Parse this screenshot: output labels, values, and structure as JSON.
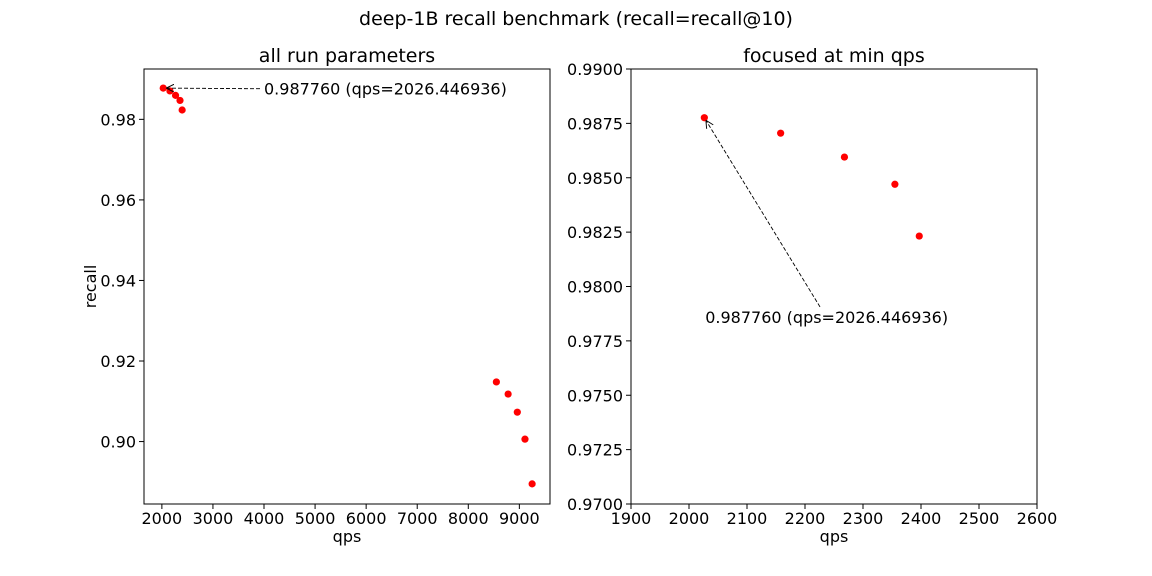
{
  "figure": {
    "title": "deep-1B recall benchmark (recall=recall@10)"
  },
  "chart_data": [
    {
      "type": "scatter",
      "title": "all run parameters",
      "xlabel": "qps",
      "ylabel": "recall",
      "xlim": [
        1650,
        9600
      ],
      "ylim": [
        0.8845,
        0.9925
      ],
      "xticks": [
        2000,
        3000,
        4000,
        5000,
        6000,
        7000,
        8000,
        9000
      ],
      "xtick_labels": [
        "2000",
        "3000",
        "4000",
        "5000",
        "6000",
        "7000",
        "8000",
        "9000"
      ],
      "yticks": [
        0.9,
        0.92,
        0.94,
        0.96,
        0.98
      ],
      "ytick_labels": [
        "0.90",
        "0.92",
        "0.94",
        "0.96",
        "0.98"
      ],
      "grid": false,
      "marker_color": "#ff0000",
      "points": [
        {
          "x": 2026.446936,
          "y": 0.98776
        },
        {
          "x": 2158,
          "y": 0.98705
        },
        {
          "x": 2268,
          "y": 0.98595
        },
        {
          "x": 2355,
          "y": 0.9847
        },
        {
          "x": 2397,
          "y": 0.98232
        },
        {
          "x": 8550,
          "y": 0.9148
        },
        {
          "x": 8780,
          "y": 0.9118
        },
        {
          "x": 8960,
          "y": 0.9073
        },
        {
          "x": 9110,
          "y": 0.9006
        },
        {
          "x": 9250,
          "y": 0.8895
        }
      ],
      "annotation": {
        "text": "0.987760 (qps=2026.446936)",
        "point": {
          "x": 2026.446936,
          "y": 0.98776
        },
        "text_at": {
          "x": 4000,
          "y": 0.9876
        }
      }
    },
    {
      "type": "scatter",
      "title": "focused at min qps",
      "xlabel": "qps",
      "ylabel": "",
      "xlim": [
        1900,
        2600
      ],
      "ylim": [
        0.97,
        0.99
      ],
      "xticks": [
        1900,
        2000,
        2100,
        2200,
        2300,
        2400,
        2500,
        2600
      ],
      "xtick_labels": [
        "1900",
        "2000",
        "2100",
        "2200",
        "2300",
        "2400",
        "2500",
        "2600"
      ],
      "yticks": [
        0.97,
        0.9725,
        0.975,
        0.9775,
        0.98,
        0.9825,
        0.985,
        0.9875,
        0.99
      ],
      "ytick_labels": [
        "0.9700",
        "0.9725",
        "0.9750",
        "0.9775",
        "0.9800",
        "0.9825",
        "0.9850",
        "0.9875",
        "0.9900"
      ],
      "grid": false,
      "marker_color": "#ff0000",
      "points": [
        {
          "x": 2026.446936,
          "y": 0.98776
        },
        {
          "x": 2158,
          "y": 0.98705
        },
        {
          "x": 2268,
          "y": 0.98595
        },
        {
          "x": 2355,
          "y": 0.9847
        },
        {
          "x": 2397,
          "y": 0.98232
        }
      ],
      "annotation": {
        "text": "0.987760 (qps=2026.446936)",
        "point": {
          "x": 2026.446936,
          "y": 0.98776
        },
        "text_at": {
          "x": 2028,
          "y": 0.9786
        }
      }
    }
  ]
}
